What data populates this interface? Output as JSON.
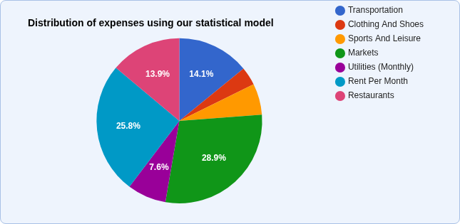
{
  "chart_data": {
    "type": "pie",
    "title": "Distribution of expenses using our statistical model",
    "categories": [
      "Transportation",
      "Clothing And Shoes",
      "Sports And Leisure",
      "Markets",
      "Utilities (Monthly)",
      "Rent Per Month",
      "Restaurants"
    ],
    "values": [
      14.1,
      3.6,
      6.1,
      28.9,
      7.6,
      25.8,
      13.9
    ],
    "value_labels": [
      "14.1%",
      null,
      null,
      "28.9%",
      "7.6%",
      "25.8%",
      "13.9%"
    ],
    "colors": [
      "#3366cc",
      "#dc3912",
      "#ff9900",
      "#109618",
      "#990099",
      "#0099c6",
      "#dd4477"
    ],
    "data_labels": true,
    "legend": "right"
  }
}
